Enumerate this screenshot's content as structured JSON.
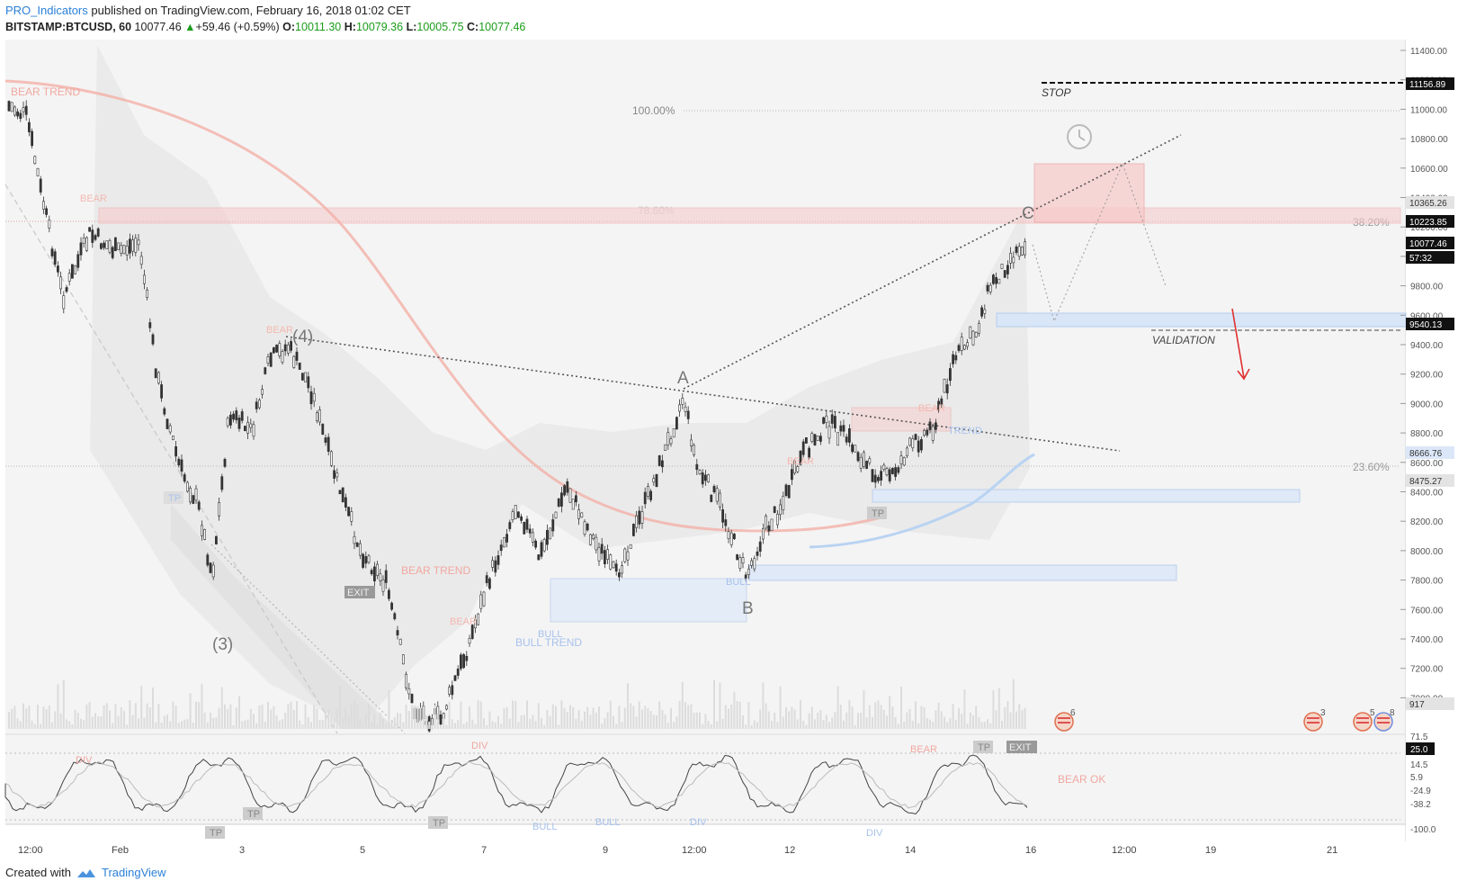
{
  "header": {
    "author": "PRO_Indicators",
    "published_text": "published on TradingView.com, February 16, 2018 01:02 CET",
    "symbol": "BITSTAMP:BTCUSD, 60",
    "price": "10077.46",
    "change": "+59.46 (+0.59%)",
    "o_label": "O:",
    "o_value": "10011.30",
    "h_label": "H:",
    "h_value": "10079.36",
    "l_label": "L:",
    "l_value": "10005.75",
    "c_label": "C:",
    "c_value": "10077.46"
  },
  "footer": {
    "created_with": "Created with",
    "brand": "TradingView"
  },
  "price_axis": {
    "ticks": [
      "11400.00",
      "11200.00",
      "11000.00",
      "10800.00",
      "10600.00",
      "10400.00",
      "10200.00",
      "10000.00",
      "9800.00",
      "9600.00",
      "9400.00",
      "9200.00",
      "9000.00",
      "8800.00",
      "8600.00",
      "8400.00",
      "8200.00",
      "8000.00",
      "7800.00",
      "7600.00",
      "7400.00",
      "7200.00",
      "7000.00"
    ],
    "labels": [
      {
        "text": "11156.89",
        "style": "black"
      },
      {
        "text": "10365.26",
        "style": "grey"
      },
      {
        "text": "10223.85",
        "style": "black"
      },
      {
        "text": "10077.46",
        "style": "black"
      },
      {
        "text": "57:32",
        "style": "black"
      },
      {
        "text": "9540.13",
        "style": "black"
      },
      {
        "text": "8666.76",
        "style": "blue"
      },
      {
        "text": "8475.27",
        "style": "grey"
      },
      {
        "text": "917",
        "style": "grey"
      }
    ]
  },
  "osc_axis": {
    "labels": [
      "71.5",
      "25.0",
      "14.5",
      "5.9",
      "-24.9",
      "-38.2",
      "-100.0"
    ]
  },
  "time_axis": [
    "12:00",
    "Feb",
    "3",
    "5",
    "7",
    "9",
    "12:00",
    "12",
    "14",
    "16",
    "12:00",
    "19",
    "21"
  ],
  "fib_levels": [
    "100.00%",
    "78.60%",
    "38.20%",
    "23.60%"
  ],
  "annotations": {
    "stop": "STOP",
    "validation": "VALIDATION",
    "bear_trend_1": "BEAR TREND",
    "bear_trend_2": "BEAR TREND",
    "bull_trend": "BULL TREND",
    "bear_ok": "BEAR OK",
    "wave_4": "(4)",
    "wave_3": "(3)",
    "wave_a": "A",
    "wave_b": "B",
    "wave_c": "C",
    "bear": "BEAR",
    "bull": "BULL",
    "tp": "TP",
    "exit": "EXIT",
    "div": "DIV",
    "trend": "TREND"
  },
  "colors": {
    "accent_blue": "#2a80d8",
    "up_green": "#1a9c1a",
    "bear_red": "#e85050"
  },
  "icons": [
    "clock-icon",
    "us-flag-event-icon",
    "tradingview-logo-icon"
  ],
  "event_counts": [
    "6",
    "3",
    "5",
    "8"
  ]
}
